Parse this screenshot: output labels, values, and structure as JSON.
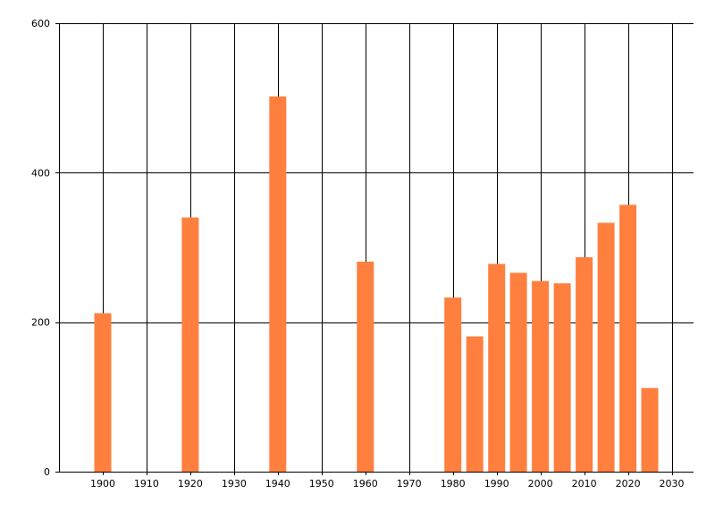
{
  "chart_data": {
    "type": "bar",
    "title": "",
    "xlabel": "",
    "ylabel": "",
    "x": [
      1900,
      1920,
      1940,
      1960,
      1980,
      1985,
      1990,
      1995,
      2000,
      2005,
      2010,
      2015,
      2020,
      2025
    ],
    "values": [
      212,
      340,
      502,
      281,
      233,
      181,
      278,
      266,
      255,
      252,
      287,
      333,
      357,
      112
    ],
    "xlim": [
      1890,
      2035
    ],
    "ylim": [
      0,
      600
    ],
    "x_ticks": [
      1900,
      1910,
      1920,
      1930,
      1940,
      1950,
      1960,
      1970,
      1980,
      1990,
      2000,
      2010,
      2020,
      2030
    ],
    "y_ticks": [
      0,
      200,
      400,
      600
    ],
    "grid": true,
    "bar_color": "#ff7f3f",
    "grid_color": "#000000"
  }
}
